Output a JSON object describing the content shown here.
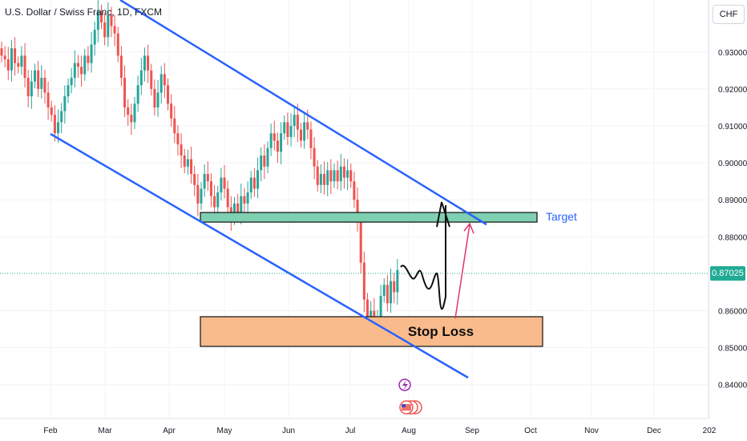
{
  "header": {
    "title": "U.S. Dollar / Swiss Franc, 1D, FXCM",
    "currency": "CHF"
  },
  "current_price_label": "0.87025",
  "annotations": {
    "target_label": "Target",
    "stop_label": "Stop Loss"
  },
  "colors": {
    "bull": "#26a69a",
    "bear": "#ef5350",
    "channel": "#2962ff",
    "target_fill": "#7fcfb1",
    "stop_fill": "#f9bb8c",
    "price_line": "#22ab94",
    "arrow": "#e2336b"
  },
  "chart_data": {
    "type": "candlestick",
    "title": "U.S. Dollar / Swiss Franc, 1D, FXCM",
    "x_tick_labels": [
      "Feb",
      "Mar",
      "Apr",
      "May",
      "Jun",
      "Jul",
      "Aug",
      "Sep",
      "Oct",
      "Nov",
      "Dec",
      "202"
    ],
    "y_tick_labels": [
      "0.93000",
      "0.92000",
      "0.91000",
      "0.90000",
      "0.89000",
      "0.88000",
      "0.86000",
      "0.85000",
      "0.84000"
    ],
    "y_ticks": [
      0.93,
      0.92,
      0.91,
      0.9,
      0.89,
      0.88,
      0.86,
      0.85,
      0.84
    ],
    "ylim": [
      0.836,
      0.942
    ],
    "close_series": [
      0.929,
      0.928,
      0.925,
      0.931,
      0.927,
      0.926,
      0.929,
      0.923,
      0.918,
      0.922,
      0.925,
      0.92,
      0.923,
      0.919,
      0.915,
      0.913,
      0.908,
      0.911,
      0.914,
      0.918,
      0.921,
      0.923,
      0.927,
      0.926,
      0.924,
      0.929,
      0.927,
      0.932,
      0.936,
      0.941,
      0.938,
      0.934,
      0.94,
      0.937,
      0.935,
      0.929,
      0.923,
      0.915,
      0.913,
      0.911,
      0.916,
      0.921,
      0.925,
      0.929,
      0.925,
      0.92,
      0.915,
      0.919,
      0.924,
      0.921,
      0.916,
      0.912,
      0.908,
      0.905,
      0.902,
      0.899,
      0.901,
      0.897,
      0.894,
      0.889,
      0.893,
      0.897,
      0.895,
      0.891,
      0.888,
      0.892,
      0.896,
      0.893,
      0.888,
      0.885,
      0.889,
      0.886,
      0.891,
      0.889,
      0.892,
      0.896,
      0.893,
      0.898,
      0.902,
      0.899,
      0.904,
      0.908,
      0.906,
      0.903,
      0.908,
      0.911,
      0.907,
      0.91,
      0.913,
      0.909,
      0.906,
      0.911,
      0.909,
      0.904,
      0.899,
      0.894,
      0.897,
      0.894,
      0.898,
      0.895,
      0.898,
      0.895,
      0.899,
      0.896,
      0.898,
      0.895,
      0.89,
      0.884,
      0.873,
      0.863,
      0.857,
      0.86,
      0.856,
      0.858,
      0.864,
      0.867,
      0.862,
      0.868,
      0.865,
      0.871
    ],
    "channel": {
      "upper": [
        {
          "date": "Mar",
          "price": 0.942
        },
        {
          "date": "Sep",
          "price": 0.883
        }
      ],
      "lower": [
        {
          "date": "Feb",
          "price": 0.908
        },
        {
          "date": "Aug",
          "price": 0.843
        }
      ]
    },
    "zones": [
      {
        "label": "Target",
        "low": 0.8846,
        "high": 0.8861
      },
      {
        "label": "Stop Loss",
        "low": 0.8505,
        "high": 0.8585
      }
    ],
    "current_price": 0.87025
  }
}
